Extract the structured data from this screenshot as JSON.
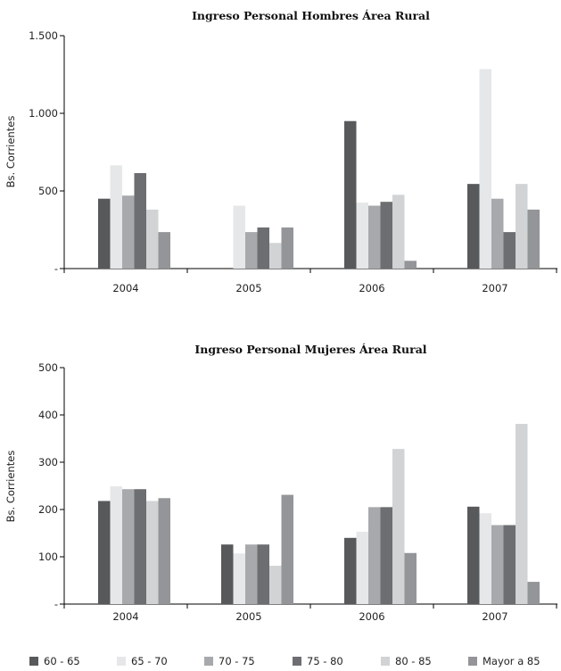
{
  "chart_data": [
    {
      "type": "bar",
      "title": "Ingreso Personal Hombres Área Rural",
      "ylabel": "Bs. Corrientes",
      "categories": [
        "2004",
        "2005",
        "2006",
        "2007"
      ],
      "ylim": [
        0,
        1500
      ],
      "yticks": [
        "-",
        "500",
        "1.000",
        "1.500"
      ],
      "series": [
        {
          "name": "60 - 65",
          "values": [
            450,
            null,
            950,
            545
          ]
        },
        {
          "name": "65 - 70",
          "values": [
            665,
            405,
            425,
            1285
          ]
        },
        {
          "name": "70 - 75",
          "values": [
            470,
            235,
            405,
            450
          ]
        },
        {
          "name": "75 - 80",
          "values": [
            615,
            265,
            430,
            235
          ]
        },
        {
          "name": "80 - 85",
          "values": [
            380,
            165,
            475,
            545
          ]
        },
        {
          "name": "Mayor a 85",
          "values": [
            235,
            265,
            50,
            380
          ]
        }
      ]
    },
    {
      "type": "bar",
      "title": "Ingreso Personal Mujeres Área Rural",
      "ylabel": "Bs. Corrientes",
      "categories": [
        "2004",
        "2005",
        "2006",
        "2007"
      ],
      "ylim": [
        0,
        500
      ],
      "yticks": [
        "-",
        "100",
        "200",
        "300",
        "400",
        "500"
      ],
      "series": [
        {
          "name": "60 - 65",
          "values": [
            218,
            126,
            140,
            206
          ]
        },
        {
          "name": "65 - 70",
          "values": [
            249,
            107,
            153,
            192
          ]
        },
        {
          "name": "70 - 75",
          "values": [
            243,
            126,
            205,
            167
          ]
        },
        {
          "name": "75 - 80",
          "values": [
            243,
            126,
            205,
            167
          ]
        },
        {
          "name": "80 - 85",
          "values": [
            218,
            81,
            328,
            381
          ]
        },
        {
          "name": "Mayor a 85",
          "values": [
            224,
            231,
            108,
            47
          ]
        }
      ]
    }
  ],
  "colors": {
    "60 - 65": "#58595b",
    "65 - 70": "#e6e7e8",
    "70 - 75": "#a7a9ac",
    "75 - 80": "#6d6e71",
    "80 - 85": "#d1d3d4",
    "Mayor a 85": "#939598"
  },
  "legend": {
    "items": [
      "60 - 65",
      "65 - 70",
      "70 - 75",
      "75 - 80",
      "80 - 85",
      "Mayor a 85"
    ]
  }
}
